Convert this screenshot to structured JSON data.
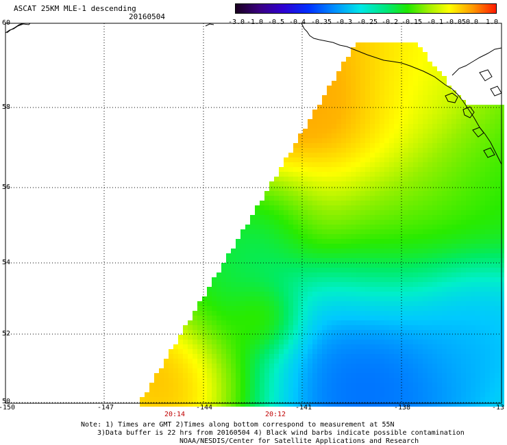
{
  "header": {
    "title": "ASCAT 25KM MLE-1 descending",
    "date": "20160504"
  },
  "colorbar": {
    "labels": [
      "-3.0",
      "-1.0",
      "-0.5",
      "-0.4",
      "-0.35",
      "-0.3",
      "-0.25",
      "-0.2",
      "-0.15",
      "-0.1",
      "-0.05",
      "0.0",
      "1.0"
    ],
    "colors": [
      "#1a0020",
      "#3a0080",
      "#3000d0",
      "#0030ff",
      "#0090ff",
      "#00e8e8",
      "#00e878",
      "#20e800",
      "#a0f000",
      "#ffff00",
      "#ff9a00",
      "#ff1a00"
    ]
  },
  "map": {
    "lat_labels": [
      "60",
      "58",
      "56",
      "54",
      "52",
      "50"
    ],
    "lon_labels": [
      "-150",
      "-147",
      "-144",
      "-141",
      "-138",
      "-13"
    ],
    "time_labels": [
      "20:14",
      "20:12"
    ],
    "time_color": "#c00000"
  },
  "notes": {
    "line1": "Note: 1) Times are GMT 2)Times along bottom correspond to measurement at 55N",
    "line2": "3)Data buffer is 22 hrs from 20160504 4) Black wind barbs indicate possible contamination",
    "line3": "NOAA/NESDIS/Center for Satellite Applications and Research"
  }
}
